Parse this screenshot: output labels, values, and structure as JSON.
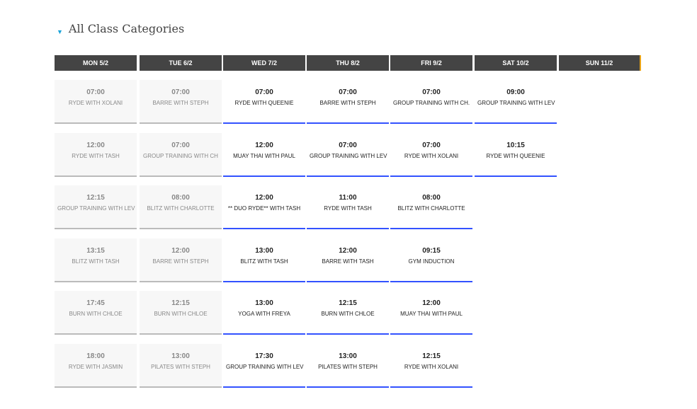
{
  "header": {
    "title": "All Class Categories",
    "caret_icon": "caret-down-icon"
  },
  "colors": {
    "accent_blue": "#3352ff",
    "header_bg": "#444444",
    "past_bg": "#f7f7f7",
    "caret": "#1aa3d9"
  },
  "days": [
    {
      "label": "MON 5/2",
      "past": true,
      "classes": [
        {
          "time": "07:00",
          "name": "RYDE WITH XOLANI"
        },
        {
          "time": "12:00",
          "name": "RYDE WITH TASH"
        },
        {
          "time": "12:15",
          "name": "GROUP TRAINING WITH LEV"
        },
        {
          "time": "13:15",
          "name": "BLITZ WITH TASH"
        },
        {
          "time": "17:45",
          "name": "BURN WITH CHLOE"
        },
        {
          "time": "18:00",
          "name": "RYDE WITH JASMIN"
        }
      ]
    },
    {
      "label": "TUE 6/2",
      "past": true,
      "classes": [
        {
          "time": "07:00",
          "name": "BARRE WITH STEPH"
        },
        {
          "time": "07:00",
          "name": "GROUP TRAINING WITH CH"
        },
        {
          "time": "08:00",
          "name": "BLITZ WITH CHARLOTTE"
        },
        {
          "time": "12:00",
          "name": "BARRE WITH STEPH"
        },
        {
          "time": "12:15",
          "name": "BURN WITH CHLOE"
        },
        {
          "time": "13:00",
          "name": "PILATES WITH STEPH"
        }
      ]
    },
    {
      "label": "WED 7/2",
      "past": false,
      "classes": [
        {
          "time": "07:00",
          "name": "RYDE WITH QUEENIE"
        },
        {
          "time": "12:00",
          "name": "MUAY THAI WITH PAUL"
        },
        {
          "time": "12:00",
          "name": "** DUO RYDE** WITH TASH"
        },
        {
          "time": "13:00",
          "name": "BLITZ WITH TASH"
        },
        {
          "time": "13:00",
          "name": "YOGA WITH FREYA"
        },
        {
          "time": "17:30",
          "name": "GROUP TRAINING WITH LEV"
        }
      ]
    },
    {
      "label": "THU 8/2",
      "past": false,
      "classes": [
        {
          "time": "07:00",
          "name": "BARRE WITH STEPH"
        },
        {
          "time": "07:00",
          "name": "GROUP TRAINING WITH LEV"
        },
        {
          "time": "11:00",
          "name": "RYDE WITH TASH"
        },
        {
          "time": "12:00",
          "name": "BARRE WITH TASH"
        },
        {
          "time": "12:15",
          "name": "BURN WITH CHLOE"
        },
        {
          "time": "13:00",
          "name": "PILATES WITH STEPH"
        }
      ]
    },
    {
      "label": "FRI 9/2",
      "past": false,
      "classes": [
        {
          "time": "07:00",
          "name": "GROUP TRAINING WITH CH."
        },
        {
          "time": "07:00",
          "name": "RYDE WITH XOLANI"
        },
        {
          "time": "08:00",
          "name": "BLITZ WITH CHARLOTTE"
        },
        {
          "time": "09:15",
          "name": "GYM INDUCTION"
        },
        {
          "time": "12:00",
          "name": "MUAY THAI WITH PAUL"
        },
        {
          "time": "12:15",
          "name": "RYDE WITH XOLANI"
        }
      ]
    },
    {
      "label": "SAT 10/2",
      "past": false,
      "classes": [
        {
          "time": "09:00",
          "name": "GROUP TRAINING WITH LEV"
        },
        {
          "time": "10:15",
          "name": "RYDE WITH QUEENIE"
        }
      ]
    },
    {
      "label": "SUN 11/2",
      "past": false,
      "classes": []
    }
  ]
}
